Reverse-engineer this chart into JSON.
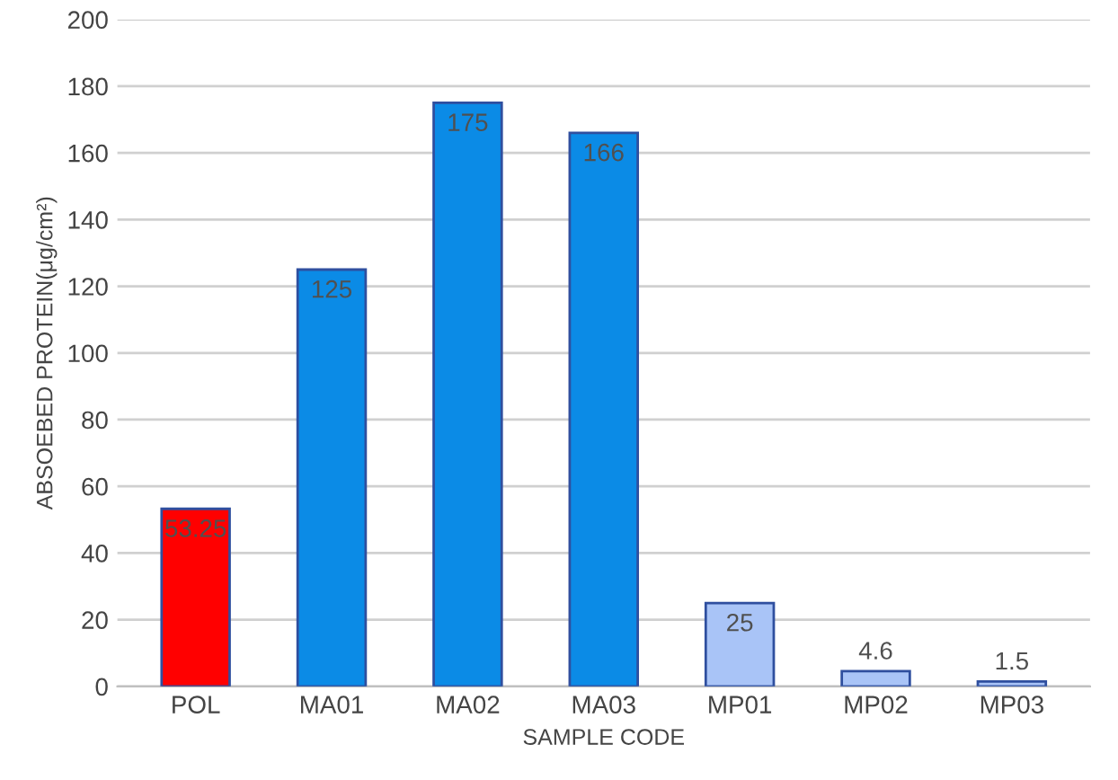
{
  "chart_data": {
    "type": "bar",
    "xlabel": "SAMPLE CODE",
    "ylabel": "ABSOEBED PROTEIN(μg/cm²)",
    "categories": [
      "POL",
      "MA01",
      "MA02",
      "MA03",
      "MP01",
      "MP02",
      "MP03"
    ],
    "values": [
      53.25,
      125,
      175,
      166,
      25,
      4.6,
      1.5
    ],
    "colors": [
      "#ff0000",
      "#0b8be6",
      "#0b8be6",
      "#0b8be6",
      "#a9c4f7",
      "#a9c4f7",
      "#a9c4f7"
    ],
    "ylim": [
      0,
      200
    ],
    "yticks": [
      0,
      20,
      40,
      60,
      80,
      100,
      120,
      140,
      160,
      180,
      200
    ],
    "grid": "y",
    "data_labels": true
  }
}
